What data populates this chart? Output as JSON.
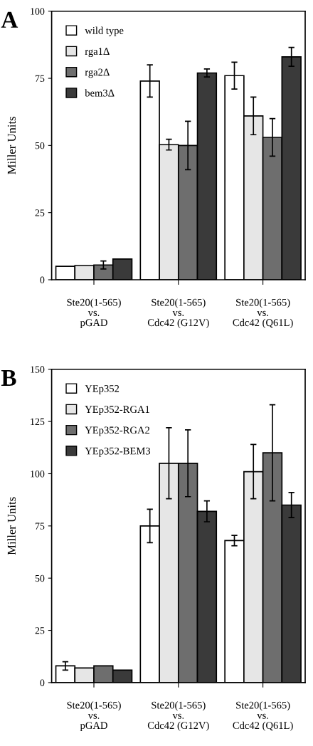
{
  "chart_data": [
    {
      "type": "bar",
      "title": "A",
      "ylabel": "Miller Units",
      "categories": [
        "Ste20(1-565)\nvs.\npGAD",
        "Ste20(1-565)\nvs.\nCdc42 (G12V)",
        "Ste20(1-565)\nvs.\nCdc42 (Q61L)"
      ],
      "ylim": [
        0,
        100
      ],
      "yticks": [
        0,
        25,
        50,
        75,
        100
      ],
      "grid": false,
      "legend": "top left",
      "series": [
        {
          "name": "wild type",
          "color": "#ffffff",
          "values": [
            5,
            74,
            76
          ],
          "errors": [
            null,
            6,
            5
          ]
        },
        {
          "name": "rga1Δ",
          "color": "#e6e6e6",
          "values": [
            5.3,
            50.3,
            61
          ],
          "errors": [
            null,
            2,
            7
          ]
        },
        {
          "name": "rga2Δ",
          "color": "#6e6e6e",
          "values": [
            5.5,
            50,
            53
          ],
          "errors": [
            1.5,
            9,
            7
          ]
        },
        {
          "name": "bem3Δ",
          "color": "#3a3a3a",
          "values": [
            7.7,
            77,
            83
          ],
          "errors": [
            null,
            1.5,
            3.5
          ]
        }
      ]
    },
    {
      "type": "bar",
      "title": "B",
      "ylabel": "Miller Units",
      "categories": [
        "Ste20(1-565)\nvs.\npGAD",
        "Ste20(1-565)\nvs.\nCdc42 (G12V)",
        "Ste20(1-565)\nvs.\nCdc42 (Q61L)"
      ],
      "ylim": [
        0,
        150
      ],
      "yticks": [
        0,
        25,
        50,
        75,
        100,
        125,
        150
      ],
      "grid": false,
      "legend": "top left",
      "series": [
        {
          "name": "YEp352",
          "color": "#ffffff",
          "values": [
            8,
            75,
            68
          ],
          "errors": [
            2,
            8,
            2.5
          ]
        },
        {
          "name": "YEp352-RGA1",
          "color": "#e6e6e6",
          "values": [
            7,
            105,
            101
          ],
          "errors": [
            null,
            17,
            13
          ]
        },
        {
          "name": "YEp352-RGA2",
          "color": "#6e6e6e",
          "values": [
            8,
            105,
            110
          ],
          "errors": [
            null,
            16,
            23
          ]
        },
        {
          "name": "YEp352-BEM3",
          "color": "#3a3a3a",
          "values": [
            6,
            82,
            85
          ],
          "errors": [
            null,
            5,
            6
          ]
        }
      ]
    }
  ]
}
